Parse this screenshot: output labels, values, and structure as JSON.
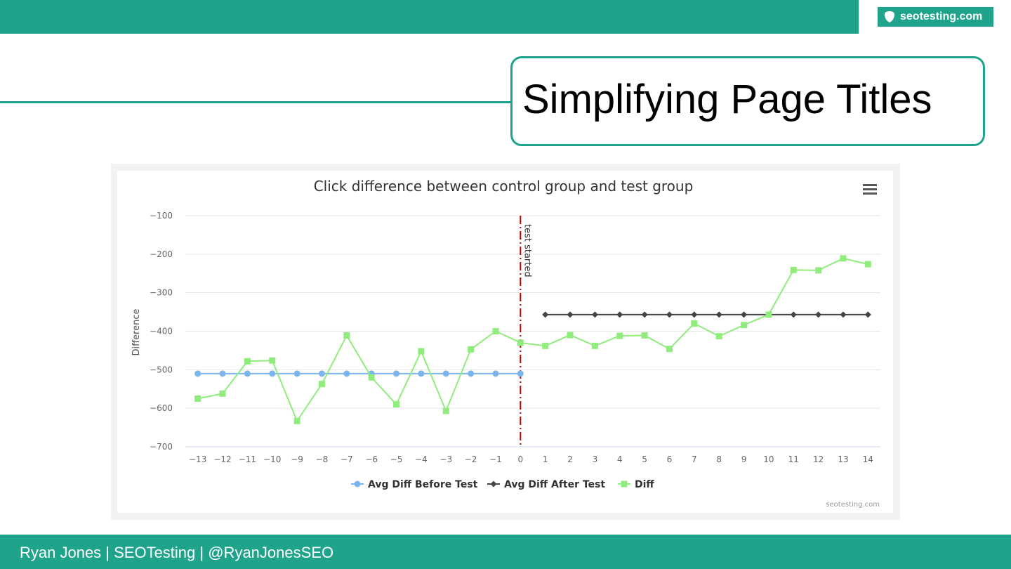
{
  "brand": {
    "text": "seotesting.com",
    "icon": "shield-icon"
  },
  "slide": {
    "title": "Simplifying Page Titles"
  },
  "footer": {
    "text": "Ryan Jones | SEOTesting | @RyanJonesSEO"
  },
  "chart_data": {
    "type": "line",
    "title": "Click difference between control group and test group",
    "ylabel": "Difference",
    "xlabel": "",
    "ylim": [
      -700,
      -100
    ],
    "yticks": [
      -100,
      -200,
      -300,
      -400,
      -500,
      -600,
      -700
    ],
    "x": [
      -13,
      -12,
      -11,
      -10,
      -9,
      -8,
      -7,
      -6,
      -5,
      -4,
      -3,
      -2,
      -1,
      0,
      1,
      2,
      3,
      4,
      5,
      6,
      7,
      8,
      9,
      10,
      11,
      12,
      13,
      14
    ],
    "grid": true,
    "legend_position": "bottom",
    "menu_icon": "hamburger-menu-icon",
    "credit": "seotesting.com",
    "annotation": {
      "x": 0,
      "label": "test started",
      "color": "#c00000"
    },
    "series": [
      {
        "name": "Avg Diff Before Test",
        "color": "#7cb5ec",
        "marker": "circle",
        "x": [
          -13,
          -12,
          -11,
          -10,
          -9,
          -8,
          -7,
          -6,
          -5,
          -4,
          -3,
          -2,
          -1,
          0
        ],
        "values": [
          -510,
          -510,
          -510,
          -510,
          -510,
          -510,
          -510,
          -510,
          -510,
          -510,
          -510,
          -510,
          -510,
          -510
        ]
      },
      {
        "name": "Avg Diff After Test",
        "color": "#434348",
        "marker": "diamond",
        "x": [
          1,
          2,
          3,
          4,
          5,
          6,
          7,
          8,
          9,
          10,
          11,
          12,
          13,
          14
        ],
        "values": [
          -357,
          -357,
          -357,
          -357,
          -357,
          -357,
          -357,
          -357,
          -357,
          -357,
          -357,
          -357,
          -357,
          -357
        ]
      },
      {
        "name": "Diff",
        "color": "#90ed7d",
        "marker": "square",
        "x": [
          -13,
          -12,
          -11,
          -10,
          -9,
          -8,
          -7,
          -6,
          -5,
          -4,
          -3,
          -2,
          -1,
          0,
          1,
          2,
          3,
          4,
          5,
          6,
          7,
          8,
          9,
          10,
          11,
          12,
          13,
          14
        ],
        "values": [
          -575,
          -562,
          -478,
          -476,
          -633,
          -537,
          -411,
          -520,
          -590,
          -452,
          -607,
          -447,
          -400,
          -430,
          -438,
          -410,
          -438,
          -412,
          -411,
          -446,
          -380,
          -413,
          -384,
          -357,
          -241,
          -242,
          -211,
          -226
        ]
      }
    ]
  }
}
